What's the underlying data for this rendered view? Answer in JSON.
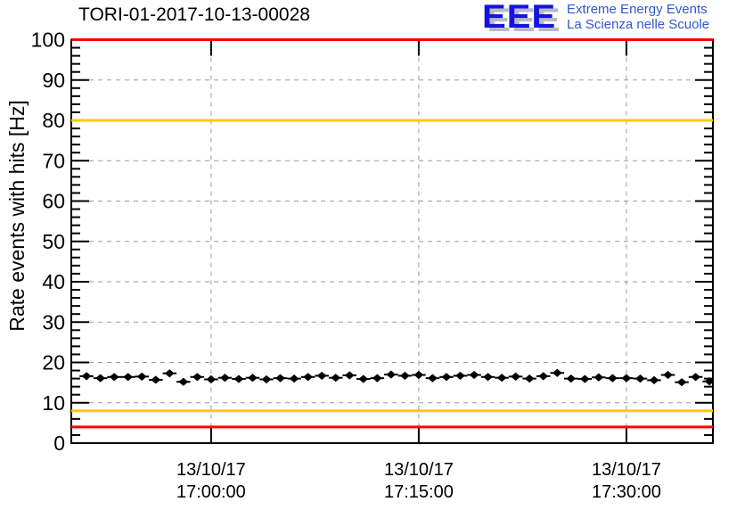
{
  "header": {
    "plot_title": "TORI-01-2017-10-13-00028",
    "logo": {
      "acronym": "EEE",
      "tagline_line1": "Extreme Energy Events",
      "tagline_line2": "La Scienza nelle Scuole"
    }
  },
  "colors": {
    "alarm_line": "#ff0000",
    "warning_line": "#ffc800",
    "grid_line": "#9a9a9a",
    "frame": "#000000",
    "marker": "#000000",
    "logo_acronym_blue": "#1414dd",
    "logo_tagline_blue": "#3355cc"
  },
  "chart_data": {
    "type": "scatter",
    "title": "TORI-01-2017-10-13-00028",
    "xlabel": "",
    "ylabel": "Rate events with hits [Hz]",
    "ylim": [
      0,
      100
    ],
    "y_major_ticks": [
      0,
      10,
      20,
      30,
      40,
      50,
      60,
      70,
      80,
      90,
      100
    ],
    "y_minor_tick_step": 2,
    "grid_horizontal": true,
    "grid_vertical": true,
    "legend": "none",
    "x_axis": {
      "start_time": "16:49:54",
      "end_time": "17:36:15",
      "ticks": [
        {
          "date": "13/10/17",
          "time": "17:00:00"
        },
        {
          "date": "13/10/17",
          "time": "17:15:00"
        },
        {
          "date": "13/10/17",
          "time": "17:30:00"
        }
      ]
    },
    "thresholds": [
      {
        "name": "alarm-high",
        "value": 100,
        "color": "#ff0000"
      },
      {
        "name": "warning-high",
        "value": 80,
        "color": "#ffc800"
      },
      {
        "name": "warning-low",
        "value": 8,
        "color": "#ffc800"
      },
      {
        "name": "alarm-low",
        "value": 4,
        "color": "#ff0000"
      }
    ],
    "series": [
      {
        "name": "rate-events-with-hits",
        "marker": "diamond",
        "color": "#000000",
        "x_error_minutes": 0.5,
        "y_error_hz": 0.45,
        "points": [
          {
            "time": "16:51:00",
            "rate_hz": 16.6
          },
          {
            "time": "16:52:00",
            "rate_hz": 16.1
          },
          {
            "time": "16:53:00",
            "rate_hz": 16.4
          },
          {
            "time": "16:54:00",
            "rate_hz": 16.4
          },
          {
            "time": "16:55:00",
            "rate_hz": 16.5
          },
          {
            "time": "16:56:00",
            "rate_hz": 15.7
          },
          {
            "time": "16:57:00",
            "rate_hz": 17.3
          },
          {
            "time": "16:58:00",
            "rate_hz": 15.2
          },
          {
            "time": "16:59:00",
            "rate_hz": 16.4
          },
          {
            "time": "17:00:00",
            "rate_hz": 15.8
          },
          {
            "time": "17:01:00",
            "rate_hz": 16.2
          },
          {
            "time": "17:02:00",
            "rate_hz": 15.9
          },
          {
            "time": "17:03:00",
            "rate_hz": 16.2
          },
          {
            "time": "17:04:00",
            "rate_hz": 15.8
          },
          {
            "time": "17:05:00",
            "rate_hz": 16.1
          },
          {
            "time": "17:06:00",
            "rate_hz": 16.0
          },
          {
            "time": "17:07:00",
            "rate_hz": 16.4
          },
          {
            "time": "17:08:00",
            "rate_hz": 16.7
          },
          {
            "time": "17:09:00",
            "rate_hz": 16.2
          },
          {
            "time": "17:10:00",
            "rate_hz": 16.8
          },
          {
            "time": "17:11:00",
            "rate_hz": 15.9
          },
          {
            "time": "17:12:00",
            "rate_hz": 16.1
          },
          {
            "time": "17:13:00",
            "rate_hz": 17.0
          },
          {
            "time": "17:14:00",
            "rate_hz": 16.7
          },
          {
            "time": "17:15:00",
            "rate_hz": 16.9
          },
          {
            "time": "17:16:00",
            "rate_hz": 16.1
          },
          {
            "time": "17:17:00",
            "rate_hz": 16.4
          },
          {
            "time": "17:18:00",
            "rate_hz": 16.7
          },
          {
            "time": "17:19:00",
            "rate_hz": 16.9
          },
          {
            "time": "17:20:00",
            "rate_hz": 16.4
          },
          {
            "time": "17:21:00",
            "rate_hz": 16.2
          },
          {
            "time": "17:22:00",
            "rate_hz": 16.5
          },
          {
            "time": "17:23:00",
            "rate_hz": 16.0
          },
          {
            "time": "17:24:00",
            "rate_hz": 16.6
          },
          {
            "time": "17:25:00",
            "rate_hz": 17.4
          },
          {
            "time": "17:26:00",
            "rate_hz": 16.0
          },
          {
            "time": "17:27:00",
            "rate_hz": 15.9
          },
          {
            "time": "17:28:00",
            "rate_hz": 16.3
          },
          {
            "time": "17:29:00",
            "rate_hz": 16.1
          },
          {
            "time": "17:30:00",
            "rate_hz": 16.1
          },
          {
            "time": "17:31:00",
            "rate_hz": 16.0
          },
          {
            "time": "17:32:00",
            "rate_hz": 15.6
          },
          {
            "time": "17:33:00",
            "rate_hz": 16.9
          },
          {
            "time": "17:34:00",
            "rate_hz": 15.1
          },
          {
            "time": "17:35:00",
            "rate_hz": 16.4
          },
          {
            "time": "17:36:00",
            "rate_hz": 15.3
          }
        ]
      }
    ]
  }
}
